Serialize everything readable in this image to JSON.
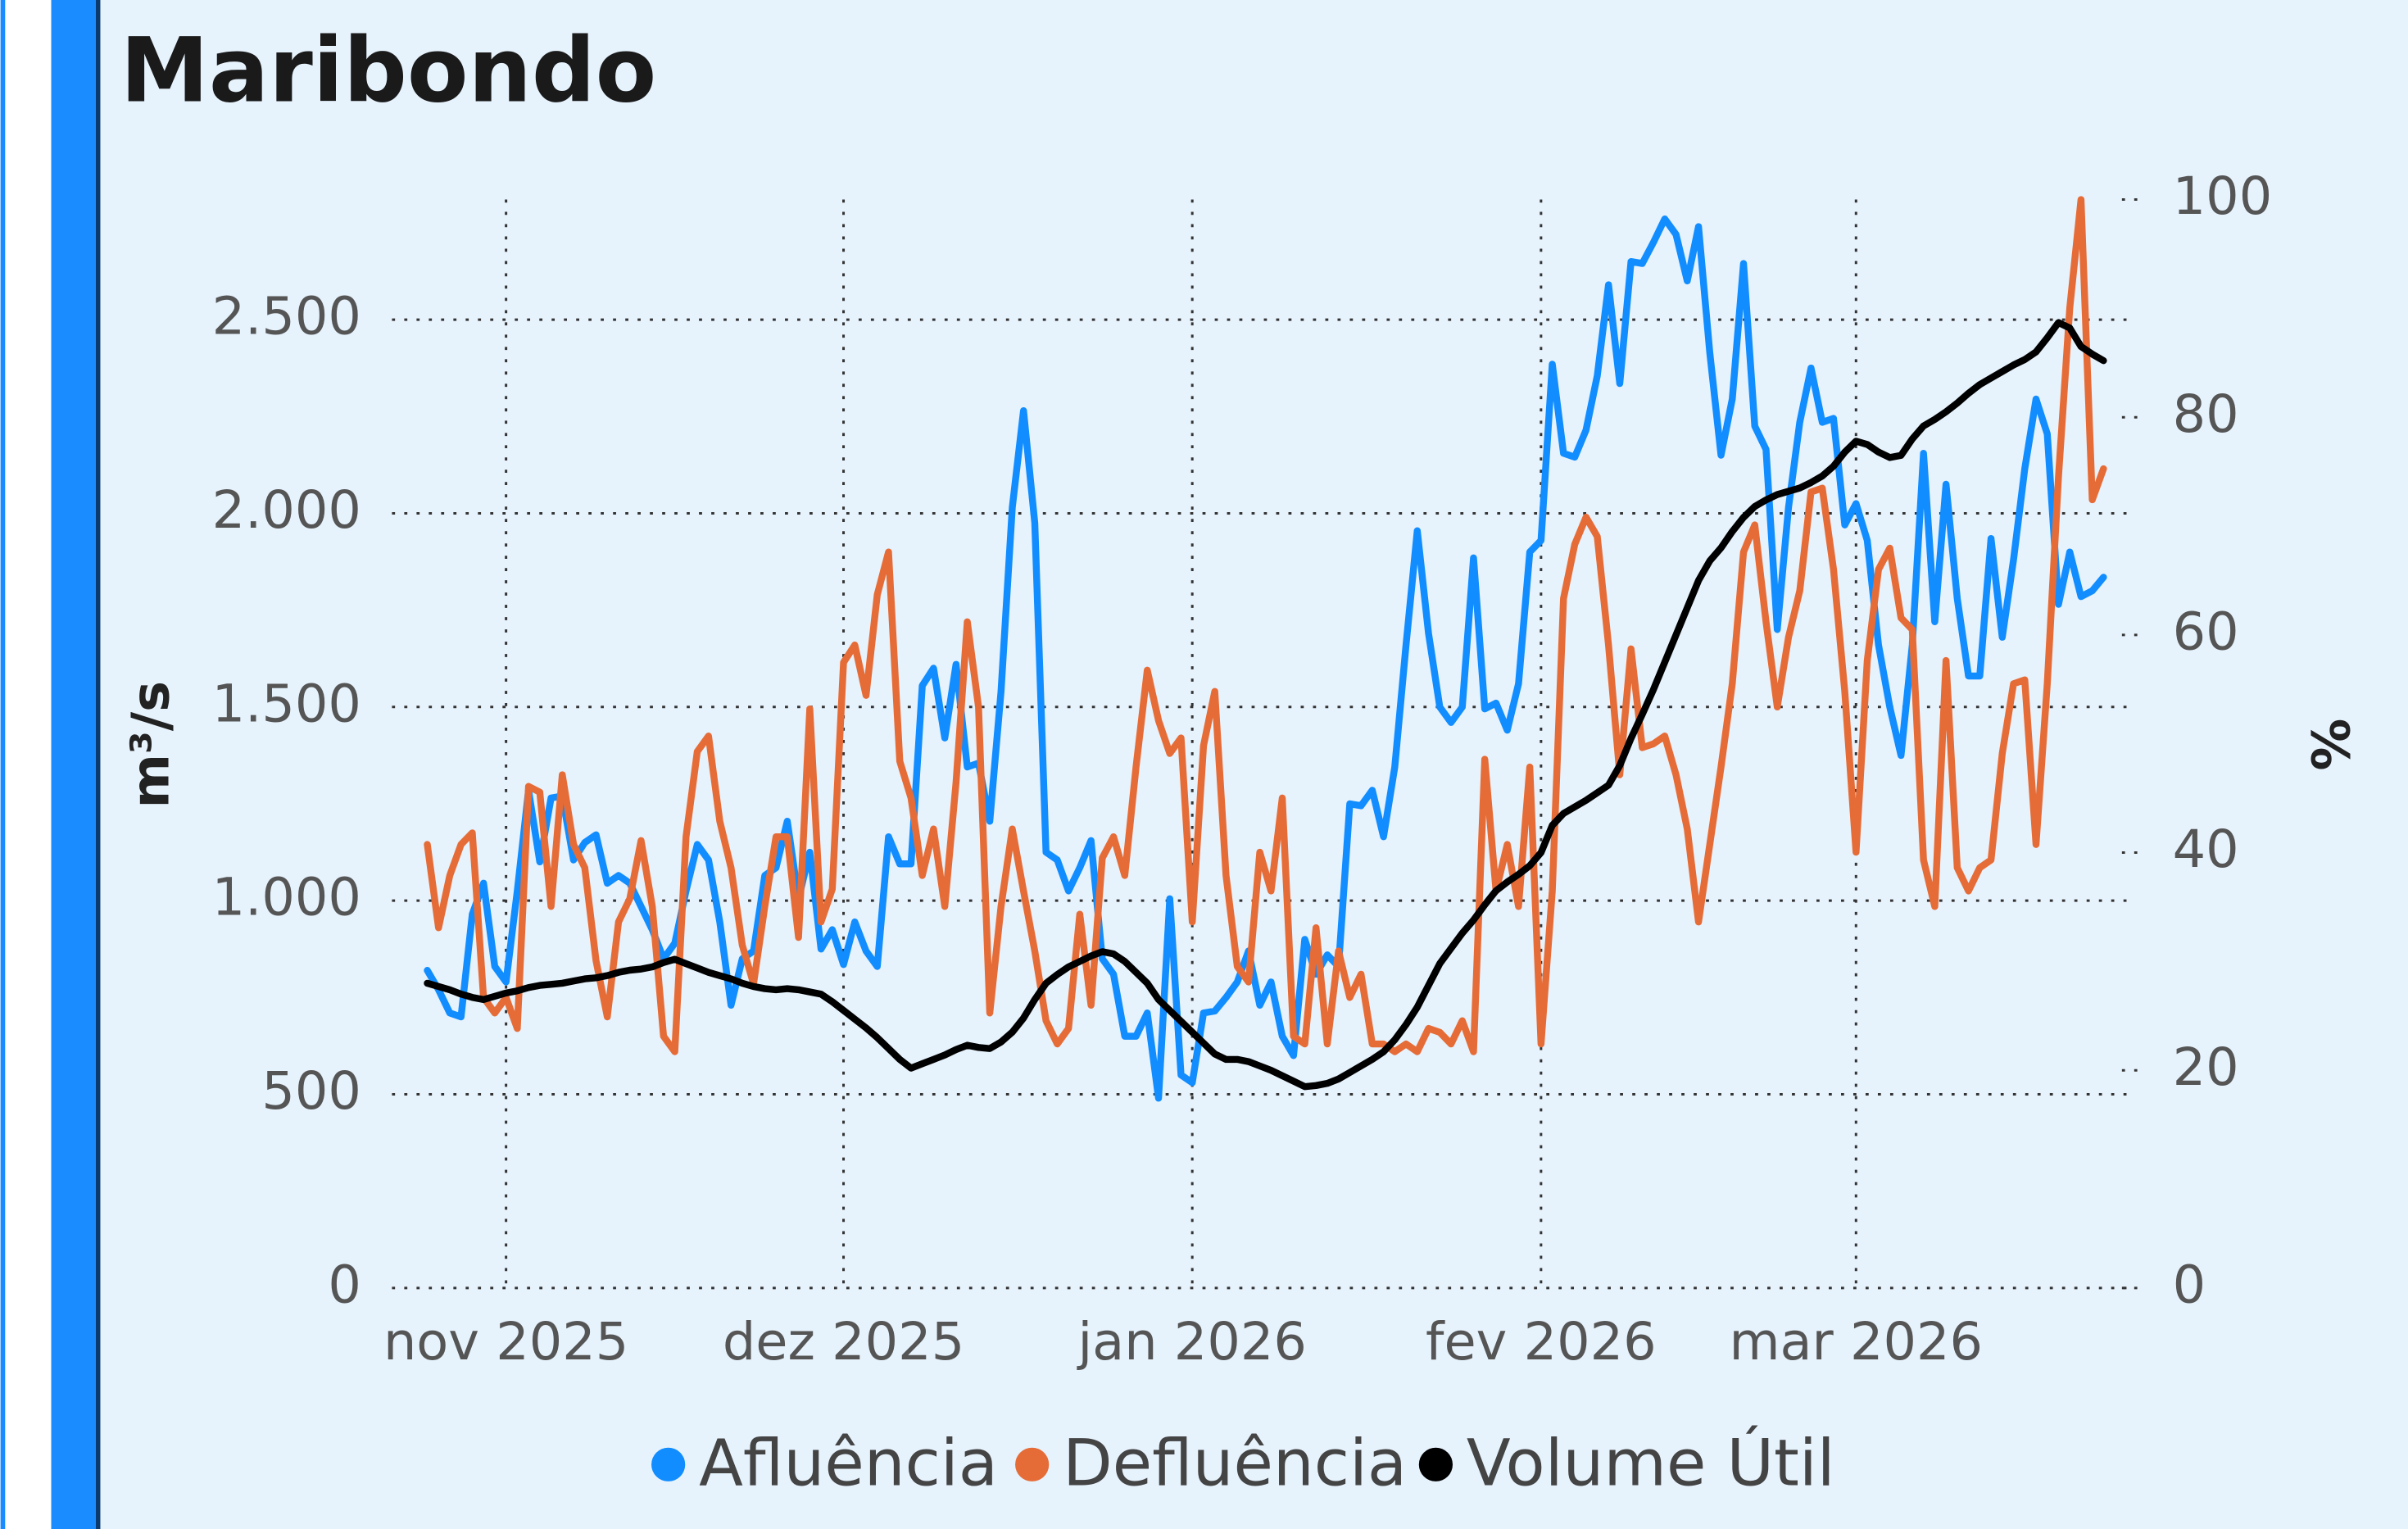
{
  "chart_data": {
    "type": "line",
    "title": "Maribondo",
    "y_label": "m³/s",
    "y2_label": "%",
    "categories": [
      null,
      null,
      null,
      null,
      null,
      null,
      null,
      "nov 2025",
      null,
      null,
      null,
      null,
      null,
      null,
      null,
      null,
      null,
      null,
      null,
      null,
      null,
      null,
      null,
      null,
      null,
      null,
      null,
      null,
      null,
      null,
      null,
      null,
      null,
      null,
      null,
      null,
      null,
      "dez 2025",
      null,
      null,
      null,
      null,
      null,
      null,
      null,
      null,
      null,
      null,
      null,
      null,
      null,
      null,
      null,
      null,
      null,
      null,
      null,
      null,
      null,
      null,
      null,
      null,
      null,
      null,
      null,
      null,
      null,
      null,
      "jan 2026",
      null,
      null,
      null,
      null,
      null,
      null,
      null,
      null,
      null,
      null,
      null,
      null,
      null,
      null,
      null,
      null,
      null,
      null,
      null,
      null,
      null,
      null,
      null,
      null,
      null,
      null,
      null,
      null,
      null,
      null,
      "fev 2026",
      null,
      null,
      null,
      null,
      null,
      null,
      null,
      null,
      null,
      null,
      null,
      null,
      null,
      null,
      null,
      null,
      null,
      null,
      null,
      null,
      null,
      null,
      null,
      null,
      null,
      null,
      null,
      "mar 2026",
      null,
      null,
      null,
      null,
      null,
      null,
      null,
      null,
      null,
      null,
      null,
      null,
      null,
      null,
      null,
      null,
      null,
      null,
      null,
      null,
      null,
      null
    ],
    "series": [
      {
        "name": "Afluência",
        "color": "#118dff",
        "values": [
          820,
          770,
          710,
          700,
          965,
          1045,
          830,
          790,
          1025,
          1285,
          1100,
          1265,
          1270,
          1105,
          1150,
          1170,
          1045,
          1065,
          1045,
          985,
          925,
          850,
          890,
          1025,
          1145,
          1105,
          945,
          730,
          850,
          870,
          1065,
          1085,
          1205,
          1005,
          1125,
          875,
          925,
          835,
          945,
          870,
          830,
          1165,
          1095,
          1095,
          1555,
          1600,
          1420,
          1610,
          1345,
          1355,
          1205,
          1540,
          2015,
          2265,
          1975,
          1125,
          1105,
          1025,
          1085,
          1155,
          850,
          810,
          650,
          650,
          710,
          490,
          1005,
          550,
          530,
          710,
          715,
          750,
          790,
          870,
          730,
          790,
          650,
          600,
          900,
          810,
          860,
          830,
          1250,
          1245,
          1285,
          1165,
          1345,
          1660,
          1955,
          1690,
          1500,
          1460,
          1500,
          1885,
          1495,
          1510,
          1440,
          1560,
          1900,
          1930,
          2385,
          2155,
          2145,
          2215,
          2355,
          2590,
          2335,
          2650,
          2645,
          2700,
          2760,
          2720,
          2600,
          2740,
          2415,
          2150,
          2295,
          2645,
          2225,
          2165,
          1700,
          2015,
          2235,
          2375,
          2235,
          2245,
          1970,
          2025,
          1930,
          1660,
          1500,
          1375,
          1660,
          2155,
          1720,
          2075,
          1780,
          1580,
          1580,
          1935,
          1680,
          1880,
          2115,
          2295,
          2205,
          1765,
          1900,
          1785,
          1800,
          1835
        ]
      },
      {
        "name": "Defluência",
        "color": "#e66c37",
        "values": [
          1145,
          930,
          1065,
          1145,
          1175,
          750,
          710,
          750,
          670,
          1295,
          1280,
          985,
          1325,
          1145,
          1085,
          845,
          700,
          945,
          1005,
          1155,
          985,
          650,
          610,
          1165,
          1385,
          1425,
          1205,
          1085,
          885,
          785,
          985,
          1165,
          1165,
          905,
          1495,
          945,
          1030,
          1615,
          1660,
          1530,
          1790,
          1900,
          1360,
          1265,
          1065,
          1185,
          985,
          1305,
          1720,
          1500,
          710,
          985,
          1185,
          1025,
          870,
          690,
          630,
          670,
          965,
          730,
          1110,
          1165,
          1065,
          1345,
          1595,
          1465,
          1380,
          1420,
          945,
          1400,
          1540,
          1065,
          830,
          790,
          1125,
          1025,
          1265,
          650,
          630,
          930,
          630,
          870,
          750,
          810,
          630,
          630,
          610,
          630,
          610,
          670,
          660,
          630,
          690,
          610,
          1365,
          1025,
          1145,
          985,
          1345,
          630,
          1025,
          1780,
          1920,
          1990,
          1940,
          1660,
          1325,
          1650,
          1395,
          1405,
          1425,
          1325,
          1185,
          945,
          1145,
          1345,
          1560,
          1900,
          1970,
          1720,
          1500,
          1680,
          1800,
          2055,
          2065,
          1855,
          1540,
          1125,
          1620,
          1855,
          1910,
          1730,
          1700,
          1105,
          985,
          1620,
          1085,
          1025,
          1085,
          1105,
          1380,
          1560,
          1570,
          1145,
          1560,
          2095,
          2530,
          2810,
          2035,
          2115
        ]
      },
      {
        "name": "Volume Útil",
        "color": "#000000",
        "axis": "y2",
        "values": [
          28,
          27.7,
          27.4,
          27,
          26.7,
          26.5,
          26.8,
          27.1,
          27.3,
          27.6,
          27.8,
          27.9,
          28,
          28.2,
          28.4,
          28.5,
          28.7,
          29,
          29.2,
          29.3,
          29.5,
          29.9,
          30.2,
          29.8,
          29.4,
          29,
          28.7,
          28.4,
          28,
          27.7,
          27.5,
          27.4,
          27.5,
          27.4,
          27.2,
          27,
          26.3,
          25.5,
          24.7,
          23.9,
          23,
          22,
          21,
          20.2,
          20.6,
          21,
          21.4,
          21.9,
          22.3,
          22.1,
          22,
          22.6,
          23.5,
          24.8,
          26.5,
          28,
          28.8,
          29.5,
          30,
          30.5,
          30.9,
          30.7,
          30,
          29,
          28,
          26.5,
          25.5,
          24.5,
          23.5,
          22.5,
          21.5,
          21,
          21,
          20.8,
          20.4,
          20,
          19.5,
          19,
          18.5,
          18.6,
          18.8,
          19.2,
          19.8,
          20.4,
          21,
          21.7,
          22.8,
          24.2,
          25.8,
          27.8,
          29.8,
          31.2,
          32.6,
          33.8,
          35.2,
          36.5,
          37.3,
          38,
          38.8,
          40,
          42.5,
          43.6,
          44.2,
          44.8,
          45.5,
          46.2,
          48,
          50.5,
          52.7,
          55,
          57.5,
          60,
          62.5,
          65,
          66.8,
          68,
          69.5,
          70.8,
          71.8,
          72.4,
          72.9,
          73.2,
          73.5,
          74,
          74.6,
          75.5,
          76.8,
          77.8,
          77.5,
          76.8,
          76.3,
          76.5,
          78,
          79.2,
          79.8,
          80.5,
          81.3,
          82.2,
          83,
          83.6,
          84.2,
          84.8,
          85.3,
          86,
          87.3,
          88.7,
          88.2,
          86.5,
          85.8,
          85.2
        ]
      }
    ],
    "ylim": [
      0,
      2810
    ],
    "yticks": [
      0,
      500,
      {
        "value": 1000,
        "label": "1.000"
      },
      {
        "value": 1500,
        "label": "1.500"
      },
      {
        "value": 2000,
        "label": "2.000"
      },
      {
        "value": 2500,
        "label": "2.500"
      }
    ],
    "y2lim": [
      0,
      100
    ],
    "y2ticks": [
      0,
      20,
      40,
      60,
      80,
      100
    ],
    "grid": true,
    "legend": "bottom"
  }
}
